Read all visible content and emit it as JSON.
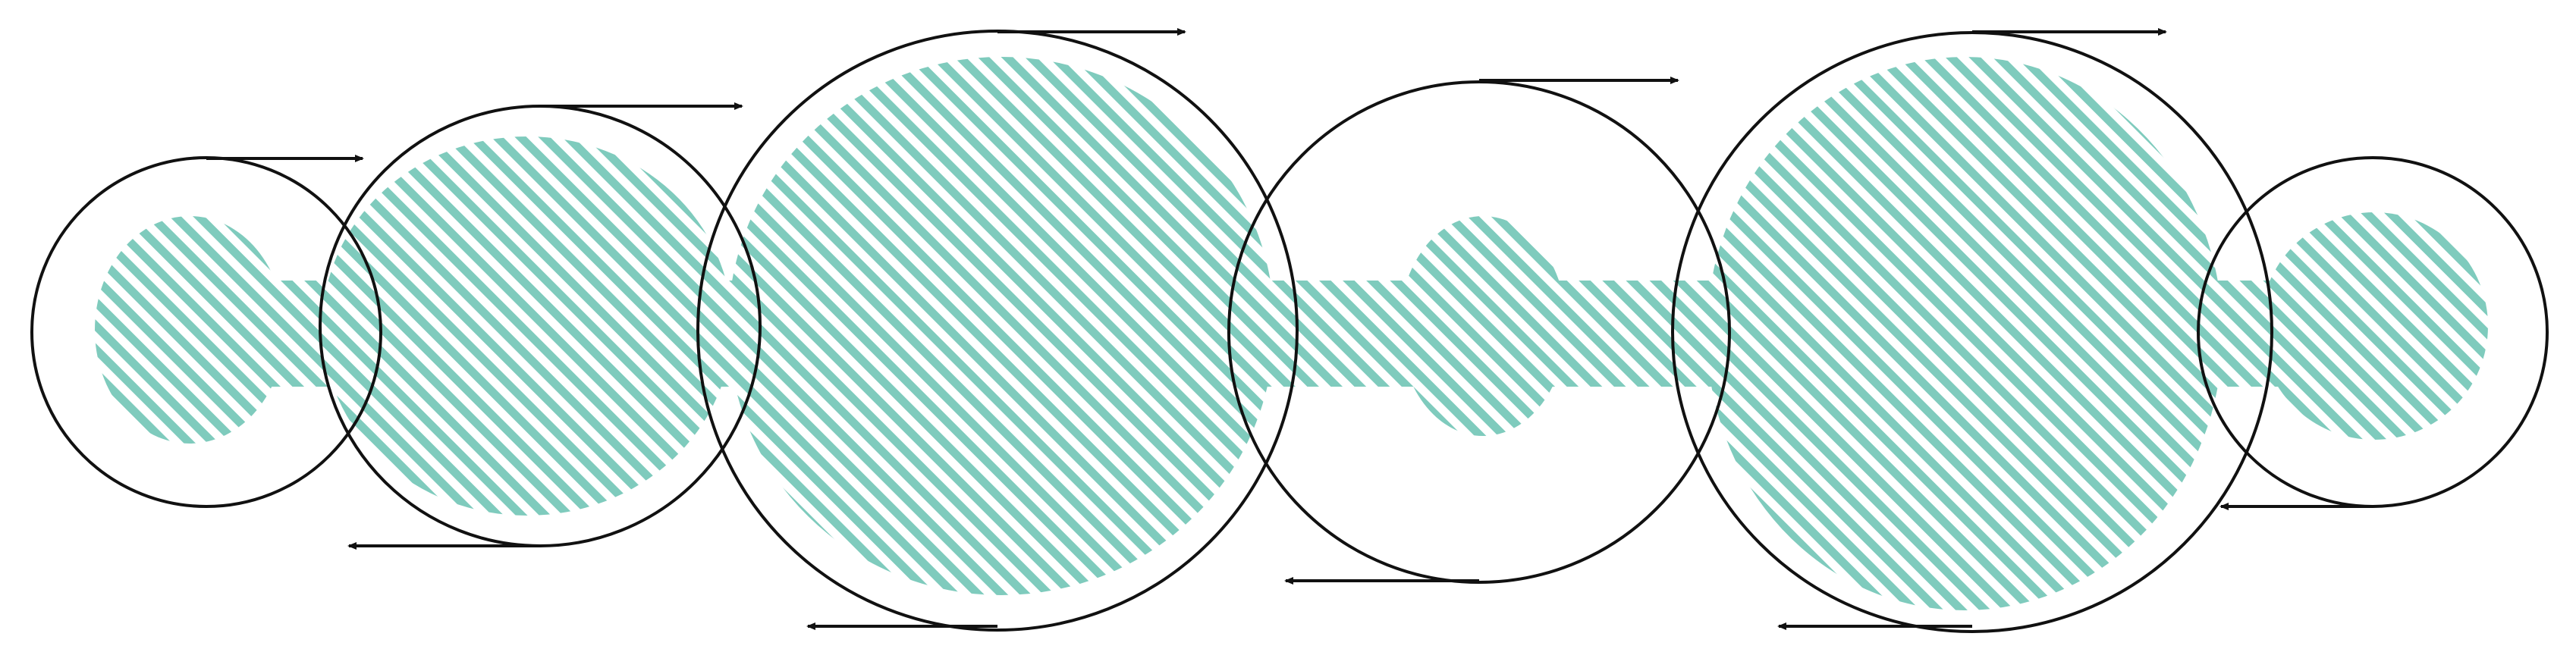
{
  "diagram": {
    "colors": {
      "hatch": "#7fcbbd",
      "stroke": "#111111",
      "background": "#ffffff"
    },
    "hatch_pattern": "diagonal-stripes",
    "circles": [
      {
        "id": "circle-1",
        "top_arrow_direction": "right",
        "bottom_arrow": false
      },
      {
        "id": "circle-2",
        "top_arrow_direction": "right",
        "bottom_arrow_direction": "left"
      },
      {
        "id": "circle-3",
        "top_arrow_direction": "right",
        "bottom_arrow_direction": "left"
      },
      {
        "id": "circle-4",
        "top_arrow_direction": "right",
        "bottom_arrow_direction": "left"
      },
      {
        "id": "circle-5",
        "top_arrow_direction": "right",
        "bottom_arrow_direction": "left"
      },
      {
        "id": "circle-6",
        "top_arrow": false,
        "bottom_arrow_direction": "left"
      }
    ]
  }
}
